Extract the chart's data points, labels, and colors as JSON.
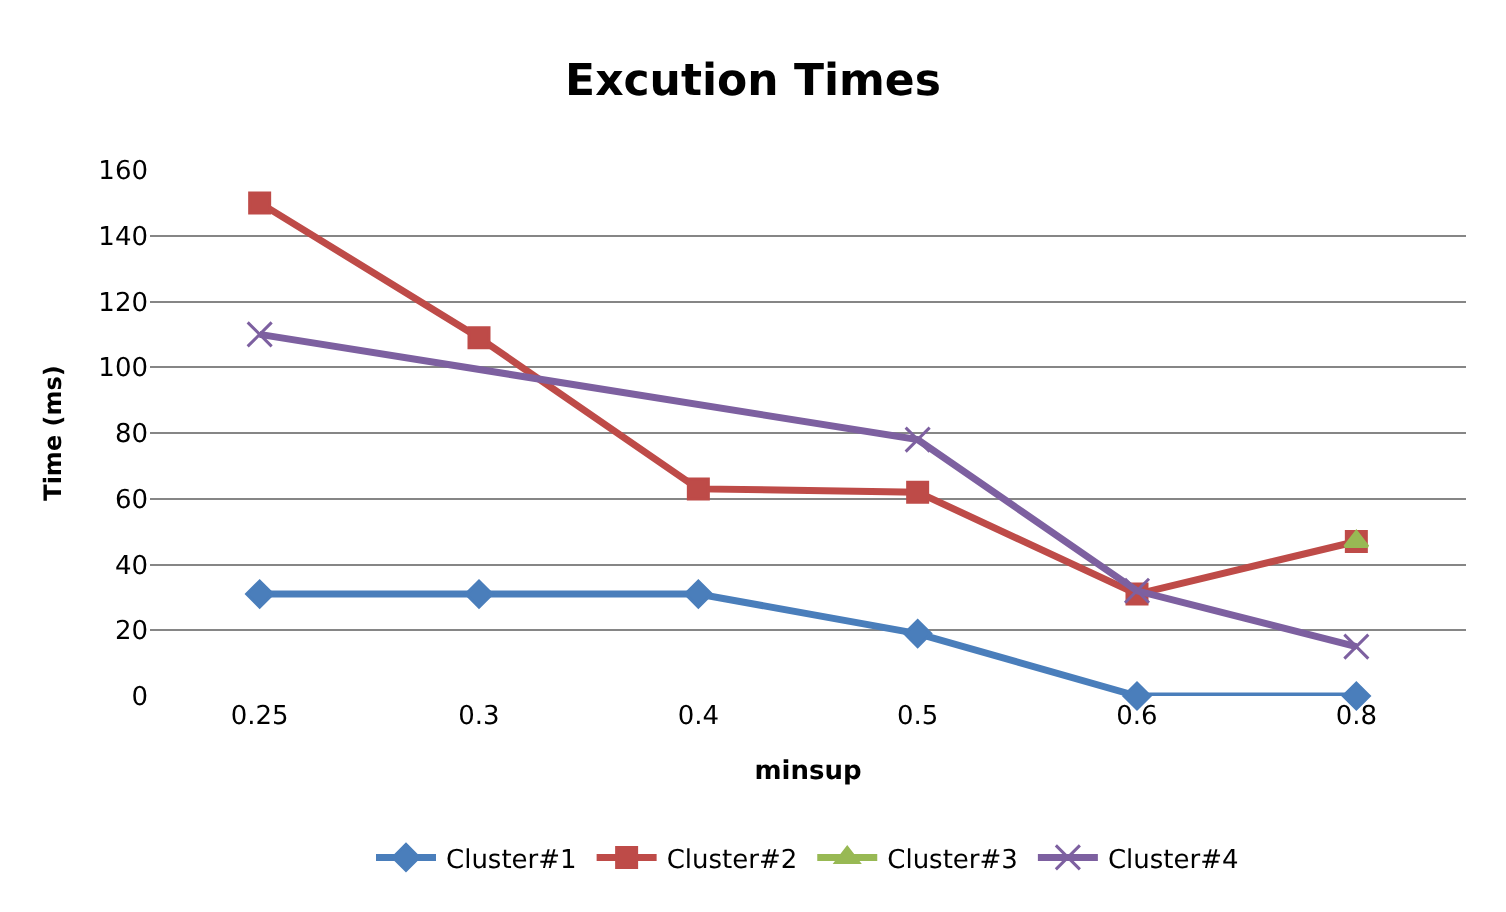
{
  "chart_data": {
    "type": "line",
    "title": "Excution Times",
    "xlabel": "minsup",
    "ylabel": "Time (ms)",
    "categories": [
      "0.25",
      "0.3",
      "0.4",
      "0.5",
      "0.6",
      "0.8"
    ],
    "ylim": [
      0,
      160
    ],
    "yticks": [
      0,
      20,
      40,
      60,
      80,
      100,
      120,
      140,
      160
    ],
    "grid": "y",
    "legend": "bottom",
    "series": [
      {
        "name": "Cluster#1",
        "color": "#4a7ebb",
        "marker": "diamond",
        "values": [
          31,
          31,
          31,
          19,
          0,
          0
        ]
      },
      {
        "name": "Cluster#2",
        "color": "#be4b48",
        "marker": "square",
        "values": [
          150,
          109,
          63,
          62,
          31,
          47
        ]
      },
      {
        "name": "Cluster#3",
        "color": "#98b954",
        "marker": "triangle",
        "values": [
          null,
          null,
          null,
          null,
          null,
          47
        ]
      },
      {
        "name": "Cluster#4",
        "color": "#7d60a0",
        "marker": "cross",
        "values": [
          110,
          null,
          null,
          78,
          32,
          15
        ]
      }
    ]
  }
}
